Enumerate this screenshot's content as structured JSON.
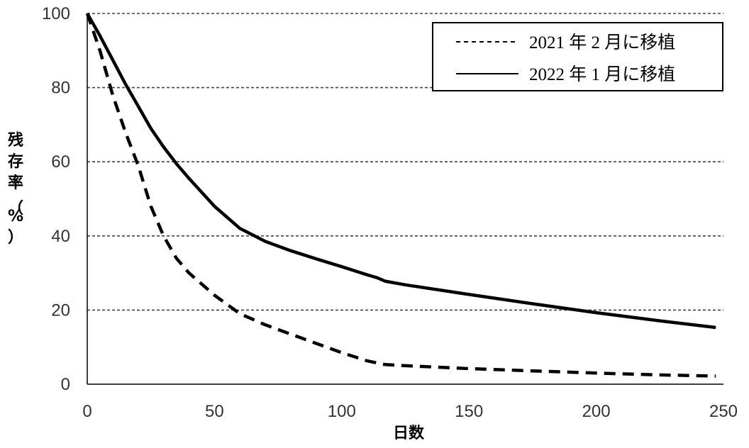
{
  "chart_data": {
    "type": "line",
    "xlabel": "日数",
    "ylabel": "残存率（%）",
    "xlim": [
      0,
      250
    ],
    "ylim": [
      0,
      100
    ],
    "xticks": [
      "0",
      "50",
      "100",
      "150",
      "200",
      "250"
    ],
    "yticks": [
      "0",
      "20",
      "40",
      "60",
      "80",
      "100"
    ],
    "grid": "horizontal dashed",
    "legend_position": "top-right",
    "series": [
      {
        "name": "2021 年 2 月に移植",
        "style": "dashed",
        "color": "#000000",
        "x": [
          0,
          5,
          10,
          15,
          20,
          25,
          30,
          35,
          40,
          50,
          60,
          70,
          80,
          90,
          100,
          110,
          117,
          125,
          150,
          175,
          200,
          225,
          247
        ],
        "y": [
          100,
          90,
          78,
          68,
          59,
          48,
          40,
          34,
          30,
          24,
          19,
          16,
          13.5,
          11,
          8.5,
          6.3,
          5.3,
          5,
          4.2,
          3.6,
          3,
          2.5,
          2.2
        ]
      },
      {
        "name": "2022 年 1 月に移植",
        "style": "solid",
        "color": "#000000",
        "x": [
          0,
          5,
          10,
          15,
          20,
          25,
          30,
          35,
          40,
          50,
          60,
          70,
          80,
          90,
          100,
          110,
          114,
          117,
          125,
          150,
          175,
          200,
          225,
          247
        ],
        "y": [
          100,
          94,
          87.5,
          81,
          75,
          69,
          64,
          59.5,
          55.5,
          48,
          42,
          38.5,
          36,
          33.8,
          31.7,
          29.5,
          28.7,
          27.8,
          26.8,
          24.2,
          21.7,
          19.3,
          17.1,
          15.3
        ]
      }
    ]
  }
}
